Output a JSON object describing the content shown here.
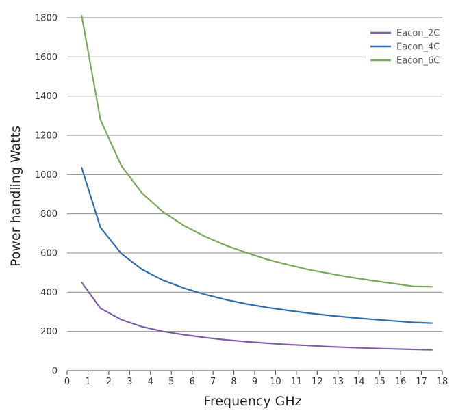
{
  "chart_data": {
    "type": "line",
    "title": "",
    "xlabel": "Frequency GHz",
    "ylabel": "Power handling Watts",
    "xlim": [
      0,
      18
    ],
    "ylim": [
      0,
      1800
    ],
    "xticks": [
      "0",
      "1",
      "2",
      "3",
      "4",
      "5",
      "6",
      "7",
      "8",
      "9",
      "10",
      "11",
      "12",
      "13",
      "14",
      "15",
      "16",
      "17",
      "18"
    ],
    "yticks": [
      "0",
      "200",
      "400",
      "600",
      "800",
      "1000",
      "1200",
      "1400",
      "1600",
      "1800"
    ],
    "grid": "horizontal",
    "legend_position": "top-right",
    "x": [
      0.7,
      1.6,
      2.6,
      3.6,
      4.6,
      5.6,
      6.6,
      7.6,
      8.6,
      9.6,
      10.6,
      11.6,
      12.6,
      13.6,
      14.6,
      15.6,
      16.6,
      17.5
    ],
    "series": [
      {
        "name": "Eacon_2C",
        "color": "#7e5fa5",
        "values": [
          450,
          318,
          260,
          224,
          200,
          183,
          169,
          157,
          148,
          140,
          133,
          128,
          122,
          118,
          114,
          111,
          108,
          106
        ]
      },
      {
        "name": "Eacon_4C",
        "color": "#2f6eac",
        "values": [
          1035,
          730,
          597,
          516,
          461,
          421,
          389,
          362,
          340,
          322,
          307,
          293,
          281,
          271,
          262,
          254,
          246,
          242
        ]
      },
      {
        "name": "Eacon_6C",
        "color": "#79a85a",
        "values": [
          1810,
          1280,
          1045,
          905,
          810,
          740,
          685,
          639,
          602,
          567,
          540,
          515,
          495,
          476,
          460,
          445,
          430,
          428
        ]
      }
    ]
  }
}
